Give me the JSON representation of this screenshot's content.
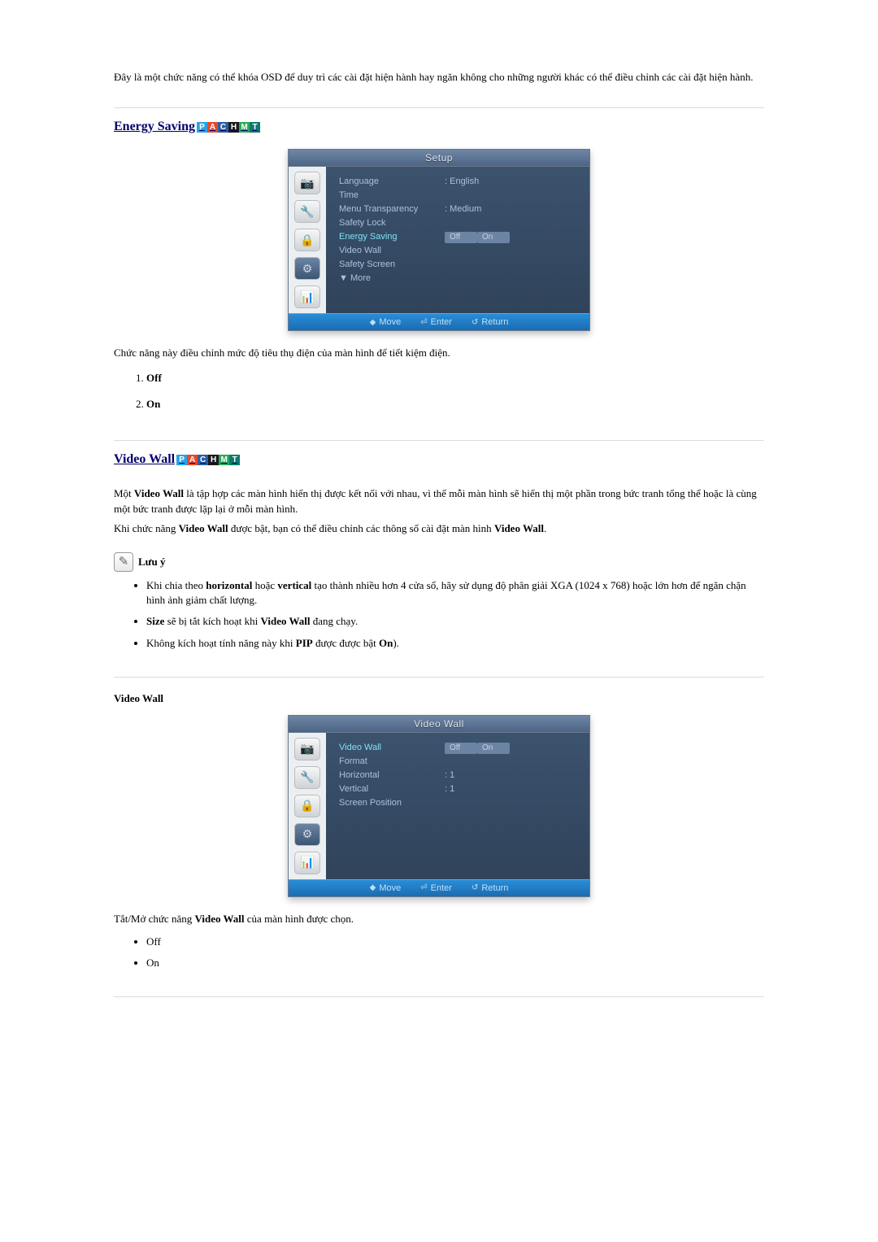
{
  "intro": "Đây là một chức năng có thể khóa OSD để duy trì các cài đặt hiện hành hay ngăn không cho những người khác có thể điều chỉnh các cài đặt hiện hành.",
  "badges": [
    {
      "t": "P",
      "c": "#2aa3e6"
    },
    {
      "t": "A",
      "c": "#e64a2a"
    },
    {
      "t": "C",
      "c": "#2b5ea3"
    },
    {
      "t": "H",
      "c": "#1b1b1b"
    },
    {
      "t": "M",
      "c": "#2aa85a"
    },
    {
      "t": "T",
      "c": "#0b7a6b"
    }
  ],
  "energy": {
    "title": "Energy Saving",
    "desc": "Chức năng này điều chỉnh mức độ tiêu thụ điện của màn hình để tiết kiệm điện.",
    "options": [
      "Off",
      "On"
    ],
    "osd": {
      "title": "Setup",
      "rows": [
        {
          "label": "Language",
          "value": ": English"
        },
        {
          "label": "Time",
          "value": ""
        },
        {
          "label": "Menu Transparency",
          "value": ": Medium"
        },
        {
          "label": "Safety Lock",
          "value": ""
        },
        {
          "label": "Energy Saving",
          "value": "",
          "hl": true,
          "pills": [
            "Off",
            "On"
          ]
        },
        {
          "label": "Video Wall",
          "value": ""
        },
        {
          "label": "Safety Screen",
          "value": ""
        },
        {
          "label": "▼ More",
          "value": ""
        }
      ],
      "footer": {
        "move": "Move",
        "enter": "Enter",
        "ret": "Return"
      }
    }
  },
  "videowall": {
    "title": "Video Wall",
    "p1a": "Một ",
    "p1b": "Video Wall",
    "p1c": " là tập hợp các màn hình hiển thị được kết nối với nhau, vì thế mỗi màn hình sẽ hiển thị một phần trong bức tranh tổng thể hoặc là cùng một bức tranh được lặp lại ở mỗi màn hình.",
    "p2a": "Khi chức năng ",
    "p2b": "Video Wall",
    "p2c": " được bật, bạn có thể điều chỉnh các thông số cài đặt màn hình ",
    "p2d": "Video Wall",
    "p2e": ".",
    "note_title": "Lưu ý",
    "notes": [
      {
        "pre": "Khi chia theo ",
        "b1": "horizontal",
        "mid": " hoặc ",
        "b2": "vertical",
        "post": " tạo thành nhiều hơn 4 cửa sổ, hãy sử dụng độ phân giải XGA (1024 x 768) hoặc lớn hơn để ngăn chặn hình ảnh giảm chất lượng."
      },
      {
        "pre": "",
        "b1": "Size",
        "mid": " sẽ bị tắt kích hoạt khi ",
        "b2": "Video Wall",
        "post": " đang chạy."
      },
      {
        "pre": "Không kích hoạt tính năng này khi ",
        "b1": "PIP",
        "mid": " được được bật ",
        "b2": "On",
        "post": ")."
      }
    ],
    "sub_title": "Video Wall",
    "osd": {
      "title": "Video Wall",
      "rows": [
        {
          "label": "Video Wall",
          "value": "",
          "hl": true,
          "pills": [
            "Off",
            "On"
          ]
        },
        {
          "label": "Format",
          "value": ""
        },
        {
          "label": "Horizontal",
          "value": ": 1"
        },
        {
          "label": "Vertical",
          "value": ": 1"
        },
        {
          "label": "Screen Position",
          "value": ""
        }
      ],
      "footer": {
        "move": "Move",
        "enter": "Enter",
        "ret": "Return"
      }
    },
    "desc2a": "Tắt/Mở chức năng ",
    "desc2b": "Video Wall",
    "desc2c": " của màn hình được chọn.",
    "options": [
      "Off",
      "On"
    ]
  }
}
